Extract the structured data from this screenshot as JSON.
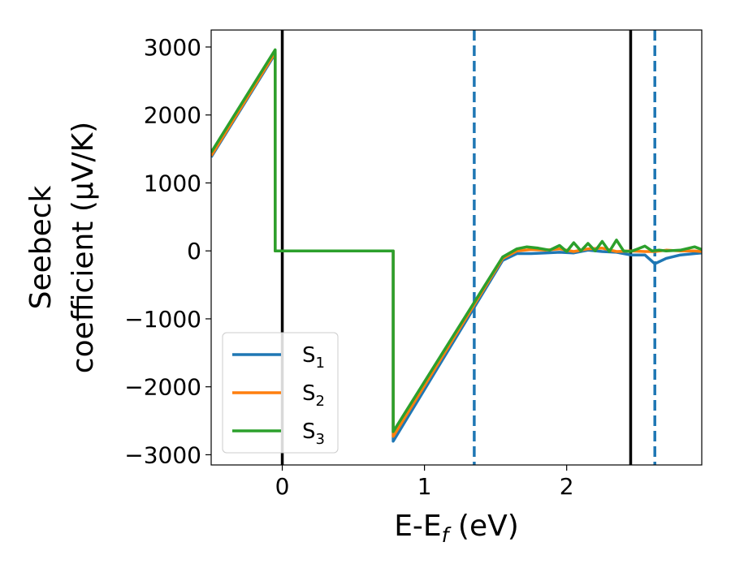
{
  "chart_data": {
    "type": "line",
    "xlabel": "E-E",
    "xlabel_sub": "f",
    "xlabel_unit": " (eV)",
    "ylabel_line1": "Seebeck",
    "ylabel_line2": "coefficient  (μV/K)",
    "xlim": [
      -0.5,
      2.95
    ],
    "ylim": [
      -3150,
      3250
    ],
    "xticks": [
      0,
      1,
      2
    ],
    "xtick_labels": [
      "0",
      "1",
      "2"
    ],
    "yticks": [
      3000,
      2000,
      1000,
      0,
      -1000,
      -2000,
      -3000
    ],
    "ytick_labels": [
      "3000",
      "2000",
      "1000",
      "0",
      "−1000",
      "−2000",
      "−3000"
    ],
    "grid": false,
    "legend_position": "lower-left",
    "vlines": [
      {
        "x": 0.0,
        "style": "solid",
        "color": "#000000"
      },
      {
        "x": 2.45,
        "style": "solid",
        "color": "#000000"
      },
      {
        "x": 1.35,
        "style": "dashed",
        "color": "#1f77b4"
      },
      {
        "x": 2.62,
        "style": "dashed",
        "color": "#1f77b4"
      }
    ],
    "series": [
      {
        "name": "S",
        "sub": "1",
        "color": "#1f77b4",
        "x": [
          -0.5,
          -0.05,
          -0.05,
          0.78,
          0.78,
          1.55,
          1.65,
          1.75,
          1.85,
          1.95,
          2.05,
          2.15,
          2.25,
          2.35,
          2.45,
          2.55,
          2.62,
          2.7,
          2.8,
          2.9,
          2.95
        ],
        "y": [
          1380,
          2900,
          0,
          0,
          -2800,
          -140,
          -40,
          -40,
          -30,
          -20,
          -30,
          10,
          -10,
          -20,
          -60,
          -60,
          -190,
          -110,
          -60,
          -40,
          -30
        ]
      },
      {
        "name": "S",
        "sub": "2",
        "color": "#ff7f0e",
        "x": [
          -0.5,
          -0.05,
          -0.05,
          0.78,
          0.78,
          1.55,
          1.65,
          1.75,
          1.85,
          1.95,
          2.05,
          2.15,
          2.25,
          2.35,
          2.45,
          2.55,
          2.62,
          2.7,
          2.8,
          2.9,
          2.95
        ],
        "y": [
          1400,
          2920,
          0,
          0,
          -2730,
          -110,
          0,
          20,
          10,
          30,
          -10,
          30,
          40,
          -10,
          0,
          -10,
          -10,
          10,
          0,
          0,
          -10
        ]
      },
      {
        "name": "S",
        "sub": "3",
        "color": "#2ca02c",
        "x": [
          -0.5,
          -0.05,
          -0.05,
          0.78,
          0.78,
          1.55,
          1.65,
          1.72,
          1.8,
          1.88,
          1.95,
          2.0,
          2.05,
          2.1,
          2.15,
          2.2,
          2.25,
          2.3,
          2.35,
          2.4,
          2.45,
          2.5,
          2.55,
          2.6,
          2.65,
          2.7,
          2.8,
          2.9,
          2.95
        ],
        "y": [
          1450,
          2960,
          0,
          0,
          -2660,
          -90,
          30,
          60,
          40,
          10,
          80,
          -10,
          120,
          0,
          110,
          0,
          140,
          -10,
          160,
          0,
          -10,
          30,
          70,
          0,
          10,
          0,
          10,
          60,
          20
        ]
      }
    ]
  }
}
